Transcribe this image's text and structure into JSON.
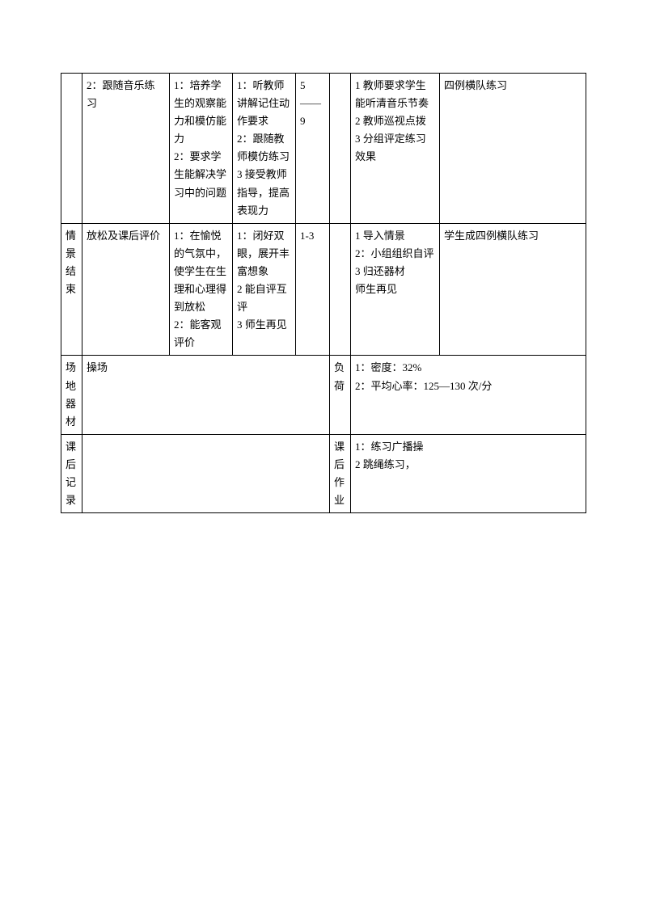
{
  "table": {
    "rows": [
      {
        "col1": "",
        "col2": "2：跟随音乐练习",
        "col3": "1：培养学生的观察能力和模仿能力\n2：要求学生能解决学习中的问题",
        "col4": "1：听教师讲解记住动作要求\n2：跟随教师模仿练习\n3 接受教师指导，提高表现力",
        "col5": "5——9",
        "col6": "",
        "col7": "1 教师要求学生能听清音乐节奏\n2 教师巡视点拨\n3 分组评定练习效果",
        "col8": "四例横队练习"
      },
      {
        "col1": "情景结束",
        "col2": "放松及课后评价",
        "col3": "1：在愉悦的气氛中，使学生在生理和心理得到放松\n2：能客观评价",
        "col4": "1：闭好双眼，展开丰富想象\n2 能自评互评\n3 师生再见",
        "col5": "1-3",
        "col6": "",
        "col7": "1 导入情景\n2：小组组织自评\n3 归还器材\n师生再见",
        "col8": "学生成四例横队练习"
      },
      {
        "col1": "场地器材",
        "col2_merged": "操场",
        "col6": "负荷",
        "col7_merged": "1：密度：32%\n2：平均心率：125—130 次/分"
      },
      {
        "col1": "课后记录",
        "col2_merged": "",
        "col6": "课后作业",
        "col7_merged": "1：练习广播操\n2 跳绳练习，"
      }
    ]
  }
}
